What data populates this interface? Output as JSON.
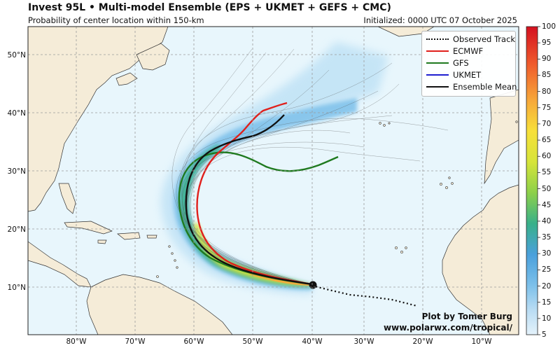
{
  "title": "Invest 95L • Multi-model Ensemble (EPS + UKMET + GEFS + CMC)",
  "subtitle": "Probability of center location within 150-km",
  "initialized": "Initialized: 0000 UTC 07 October 2025",
  "legend": [
    {
      "label": "Observed Track",
      "color": "#111111",
      "style": "dotted"
    },
    {
      "label": "ECMWF",
      "color": "#e0201c",
      "style": "solid"
    },
    {
      "label": "GFS",
      "color": "#1f7a1f",
      "style": "solid"
    },
    {
      "label": "UKMET",
      "color": "#1f1fd0",
      "style": "solid"
    },
    {
      "label": "Ensemble Mean",
      "color": "#111111",
      "style": "solid"
    }
  ],
  "credit": {
    "line1": "Plot by Tomer Burg",
    "line2": "www.polarwx.com/tropical/"
  },
  "lat_labels": [
    "50°N",
    "40°N",
    "30°N",
    "20°N",
    "10°N"
  ],
  "lon_labels": [
    "80°W",
    "70°W",
    "60°W",
    "50°W",
    "40°W",
    "30°W",
    "20°W",
    "10°W"
  ],
  "colorbar": {
    "min": 5,
    "max": 100,
    "ticks": [
      "100",
      "95",
      "90",
      "85",
      "80",
      "75",
      "70",
      "65",
      "60",
      "55",
      "50",
      "45",
      "40",
      "35",
      "30",
      "25",
      "20",
      "15",
      "10",
      "5"
    ]
  },
  "colors": {
    "ocean": "#e8f6fc",
    "land": "#f5ecd8",
    "grid": "#9a9a9a"
  }
}
